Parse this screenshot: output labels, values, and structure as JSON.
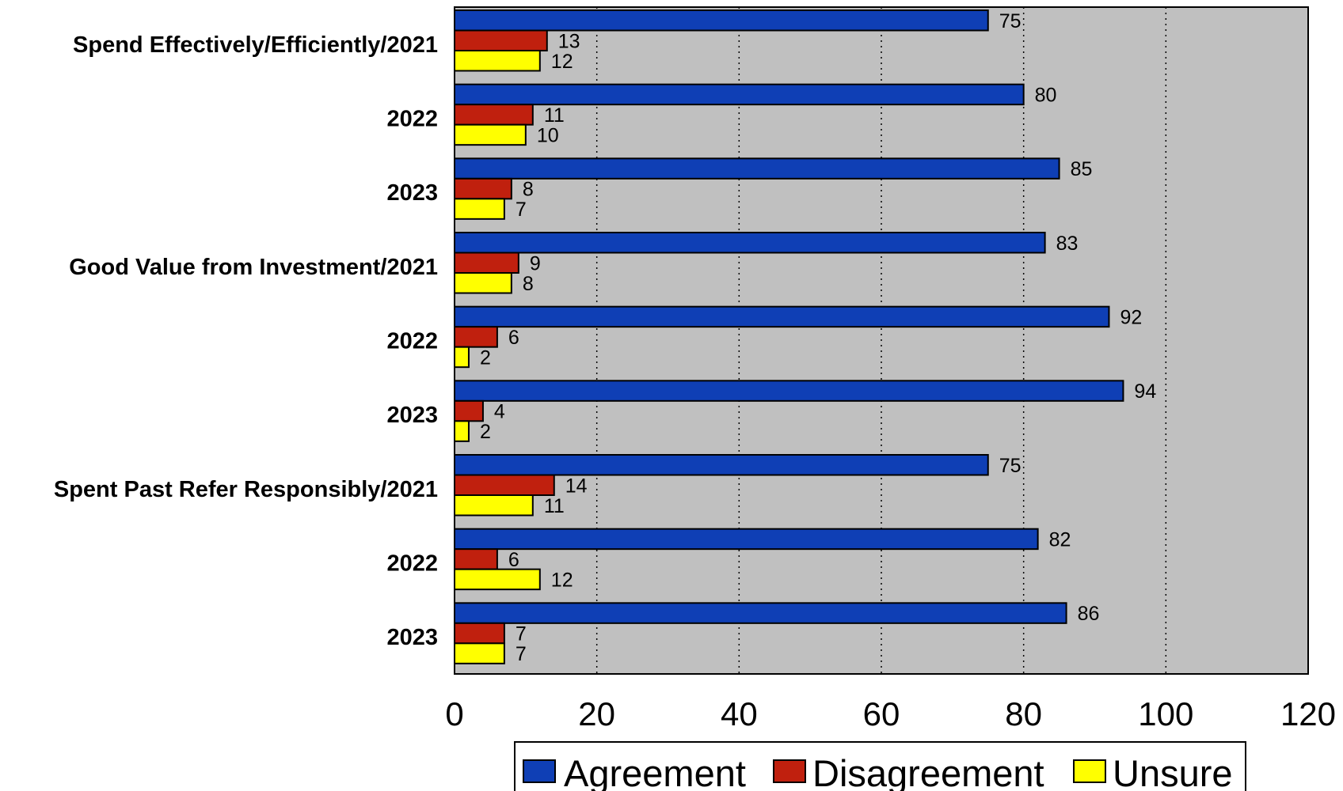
{
  "chart_data": {
    "type": "bar",
    "orientation": "horizontal",
    "categories": [
      "Spend Effectively/Efficiently/2021",
      "2022",
      "2023",
      "Good Value from Investment/2021",
      "2022",
      "2023",
      "Spent Past Refer Responsibly/2021",
      "2022",
      "2023"
    ],
    "series": [
      {
        "name": "Agreement",
        "color": "#0f3fb5",
        "values": [
          75,
          80,
          85,
          83,
          92,
          94,
          75,
          82,
          86
        ]
      },
      {
        "name": "Disagreement",
        "color": "#c0200e",
        "values": [
          13,
          11,
          8,
          9,
          6,
          4,
          14,
          6,
          7
        ]
      },
      {
        "name": "Unsure",
        "color": "#ffff00",
        "values": [
          12,
          10,
          7,
          8,
          2,
          2,
          11,
          12,
          7
        ]
      }
    ],
    "x_ticks": [
      "0",
      "20",
      "40",
      "60",
      "80",
      "100",
      "120"
    ],
    "xlim": [
      0,
      120
    ],
    "grid": "vertical dotted",
    "legend": "bottom",
    "plot_background": "#c0c0c0",
    "title": "",
    "xlabel": "",
    "ylabel": ""
  }
}
